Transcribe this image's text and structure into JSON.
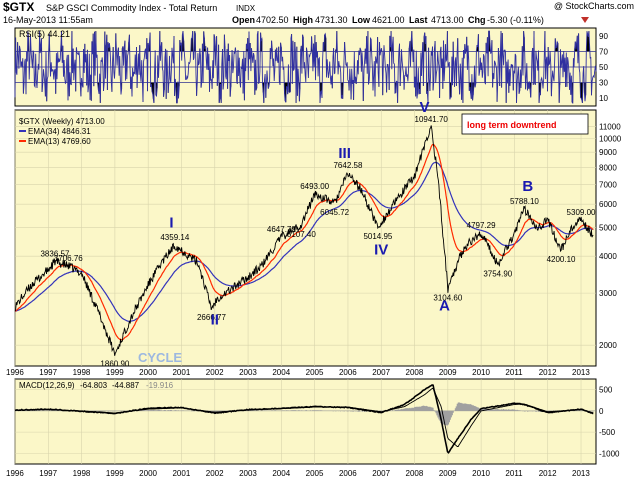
{
  "header": {
    "symbol": "$GTX",
    "name": "S&P GSCI Commodity Index - Total Return",
    "exchange": "INDX",
    "date": "16-May-2013 11:55am",
    "watermark": "@ StockCharts.com",
    "stats": {
      "open_label": "Open",
      "open": "4702.50",
      "high_label": "High",
      "high": "4731.30",
      "low_label": "Low",
      "low": "4621.00",
      "last_label": "Last",
      "last": "4713.00",
      "chg_label": "Chg",
      "chg": "-5.30 (-0.11%)"
    }
  },
  "colors": {
    "plot_bg": "#fbf7c8",
    "price": "#000000",
    "ema34": "#3333bb",
    "ema13": "#ff2a00",
    "rsi": "#3030a0",
    "macd_hist": "#a0a0a0",
    "wave_label": "#1a1ab0",
    "cycle_label": "#9db8e0",
    "downtrend": "#ee0000"
  },
  "legend": {
    "rsi": "RSI(5) 44.21",
    "price": "$GTX (Weekly) 4713.00",
    "ema34": "EMA(34) 4846.31",
    "ema13": "EMA(13) 4769.60",
    "macd_prefix": "MACD(12,26,9)",
    "macd_vals": [
      "-64.803",
      "-44.887",
      "-19.916"
    ]
  },
  "annotations": {
    "downtrend": "long term downtrend",
    "cycle": "CYCLE"
  },
  "chart_data": [
    {
      "type": "line",
      "panel": "RSI",
      "ylim": [
        0,
        100
      ],
      "y_ticks": [
        "90",
        "70",
        "50",
        "30",
        "10"
      ],
      "reference_lines": [
        70,
        50,
        30
      ],
      "last_value": 44.21
    },
    {
      "type": "line",
      "panel": "price",
      "scale": "log",
      "ylim": [
        1700,
        12500
      ],
      "y_ticks": [
        {
          "value": 11000,
          "label": "11000"
        },
        {
          "value": 10000,
          "label": "10000"
        },
        {
          "value": 9000,
          "label": "9000"
        },
        {
          "value": 8000,
          "label": "8000"
        },
        {
          "value": 7000,
          "label": "7000"
        },
        {
          "value": 6000,
          "label": "6000"
        },
        {
          "value": 5000,
          "label": "5000"
        },
        {
          "value": 4000,
          "label": "4000"
        },
        {
          "value": 3000,
          "label": "3000"
        },
        {
          "value": 2000,
          "label": "2000"
        }
      ],
      "x_ticks": [
        "1996",
        "1997",
        "1998",
        "1999",
        "2000",
        "2001",
        "2002",
        "2003",
        "2004",
        "2005",
        "2006",
        "2007",
        "2008",
        "2009",
        "2010",
        "2011",
        "2012",
        "2013"
      ],
      "series": [
        {
          "name": "$GTX (Weekly)",
          "x": [
            1996.0,
            1996.5,
            1997.0,
            1997.2,
            1997.6,
            1998.0,
            1998.5,
            1999.0,
            1999.5,
            2000.0,
            2000.4,
            2000.8,
            2001.0,
            2001.5,
            2001.9,
            2002.1,
            2002.5,
            2003.0,
            2003.4,
            2004.0,
            2004.6,
            2005.0,
            2005.6,
            2006.0,
            2006.4,
            2006.9,
            2007.2,
            2007.6,
            2008.0,
            2008.5,
            2008.7,
            2009.0,
            2009.2,
            2009.5,
            2010.0,
            2010.5,
            2011.0,
            2011.3,
            2011.7,
            2012.0,
            2012.4,
            2012.7,
            2013.0,
            2013.37
          ],
          "y": [
            2700,
            3200,
            3600,
            3836.57,
            3706.76,
            3500,
            2600,
            1860.9,
            2500,
            3200,
            3800,
            4359.14,
            4200,
            3800,
            2666.77,
            2900,
            3100,
            3400,
            3700,
            4647.72,
            5107.4,
            6493,
            6045.72,
            7642.58,
            6700,
            5014.95,
            5600,
            6500,
            7500,
            10941.7,
            7500,
            3104.6,
            3600,
            4300,
            4797.29,
            3754.9,
            4800,
            5788.1,
            5000,
            5300,
            4200.1,
            4900,
            5309,
            4713
          ]
        },
        {
          "name": "EMA(34)",
          "last": 4846.31
        },
        {
          "name": "EMA(13)",
          "last": 4769.6
        }
      ],
      "labels": [
        {
          "text": "3836.57",
          "x": 1997.2,
          "y": 3836.57
        },
        {
          "text": "3706.76",
          "x": 1997.6,
          "y": 3706.76
        },
        {
          "text": "1860.90",
          "x": 1999.0,
          "y": 1860.9
        },
        {
          "text": "4359.14",
          "x": 2000.8,
          "y": 4359.14
        },
        {
          "text": "2666.77",
          "x": 2001.9,
          "y": 2666.77
        },
        {
          "text": "4647.72",
          "x": 2004.0,
          "y": 4647.72
        },
        {
          "text": "5107.40",
          "x": 2004.6,
          "y": 5107.4
        },
        {
          "text": "6493.00",
          "x": 2005.0,
          "y": 6493
        },
        {
          "text": "6045.72",
          "x": 2005.6,
          "y": 6045.72
        },
        {
          "text": "7642.58",
          "x": 2006.0,
          "y": 7642.58
        },
        {
          "text": "5014.95",
          "x": 2006.9,
          "y": 5014.95
        },
        {
          "text": "10941.70",
          "x": 2008.5,
          "y": 10941.7
        },
        {
          "text": "3104.60",
          "x": 2009.0,
          "y": 3104.6
        },
        {
          "text": "4797.29",
          "x": 2010.0,
          "y": 4797.29
        },
        {
          "text": "3754.90",
          "x": 2010.5,
          "y": 3754.9
        },
        {
          "text": "5788.10",
          "x": 2011.3,
          "y": 5788.1
        },
        {
          "text": "5309.00",
          "x": 2013.0,
          "y": 5309
        },
        {
          "text": "4200.10",
          "x": 2012.4,
          "y": 4200.1
        }
      ],
      "wave_labels": [
        {
          "text": "I",
          "x": 2000.7,
          "y": 5000
        },
        {
          "text": "II",
          "x": 2002.0,
          "y": 2350
        },
        {
          "text": "III",
          "x": 2005.9,
          "y": 8600
        },
        {
          "text": "IV",
          "x": 2007.0,
          "y": 4050
        },
        {
          "text": "V",
          "x": 2008.3,
          "y": 12300
        },
        {
          "text": "A",
          "x": 2008.9,
          "y": 2620
        },
        {
          "text": "B",
          "x": 2011.4,
          "y": 6650
        }
      ]
    },
    {
      "type": "line",
      "panel": "MACD",
      "ylim": [
        -1250,
        750
      ],
      "y_ticks": [
        {
          "value": 500,
          "label": "500"
        },
        {
          "value": 0,
          "label": "0"
        },
        {
          "value": -500,
          "label": "-500"
        },
        {
          "value": -1000,
          "label": "-1000"
        }
      ],
      "x_ticks": [
        "1996",
        "1997",
        "1998",
        "1999",
        "2000",
        "2001",
        "2002",
        "2003",
        "2004",
        "2005",
        "2006",
        "2007",
        "2008",
        "2009",
        "2010",
        "2011",
        "2012",
        "2013"
      ],
      "series": [
        {
          "name": "MACD",
          "x": [
            1996,
            1997,
            1998,
            1999,
            2000,
            2001,
            2002,
            2003,
            2004,
            2005,
            2006,
            2007,
            2007.7,
            2008.3,
            2008.55,
            2008.8,
            2009.0,
            2009.3,
            2009.7,
            2010,
            2011,
            2011.3,
            2012,
            2013,
            2013.37
          ],
          "y": [
            20,
            40,
            -10,
            -60,
            60,
            80,
            -50,
            30,
            60,
            100,
            80,
            -40,
            150,
            500,
            620,
            -200,
            -1000,
            -650,
            -200,
            50,
            180,
            150,
            -40,
            40,
            -64.8
          ]
        },
        {
          "name": "Signal",
          "x": [
            1996,
            1997,
            1998,
            1999,
            2000,
            2001,
            2002,
            2003,
            2004,
            2005,
            2006,
            2007,
            2007.7,
            2008.3,
            2008.55,
            2008.8,
            2009.0,
            2009.3,
            2009.7,
            2010,
            2011,
            2011.3,
            2012,
            2013,
            2013.37
          ],
          "y": [
            15,
            30,
            0,
            -50,
            40,
            70,
            -30,
            20,
            50,
            90,
            90,
            -20,
            100,
            380,
            540,
            100,
            -650,
            -850,
            -350,
            0,
            150,
            160,
            -20,
            30,
            -44.9
          ]
        }
      ]
    }
  ]
}
